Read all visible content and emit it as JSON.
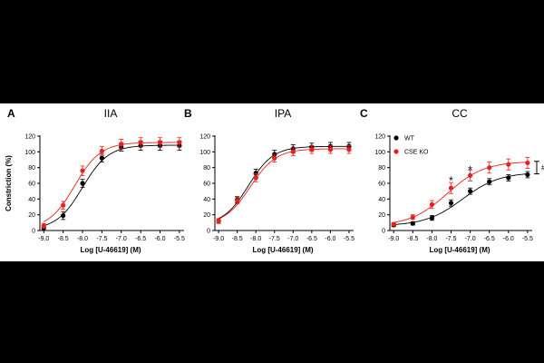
{
  "figure": {
    "x_label": "Log [U-46619] (M)",
    "y_label": "Constriction (%)",
    "x_ticks": [
      "-9.0",
      "-8.5",
      "-8.0",
      "-7.5",
      "-7.0",
      "-6.5",
      "-6.0",
      "-5.5"
    ],
    "y_ticks": [
      "0",
      "20",
      "40",
      "60",
      "80",
      "100",
      "120"
    ]
  },
  "chart_data": [
    {
      "type": "scatter",
      "panel_letter": "A",
      "title": "IIA",
      "xlabel": "Log [U-46619] (M)",
      "ylabel": "Constriction (%)",
      "xlim": [
        -9.1,
        -5.45
      ],
      "ylim": [
        0,
        120
      ],
      "x": [
        -9.0,
        -8.5,
        -8.0,
        -7.5,
        -7.0,
        -6.5,
        -6.0,
        -5.5
      ],
      "series": [
        {
          "name": "WT",
          "color": "#000000",
          "values": [
            3,
            19,
            60,
            92,
            106,
            108,
            108,
            108
          ],
          "errors": [
            3,
            5,
            5,
            5,
            5,
            6,
            6,
            6
          ],
          "fit": {
            "bottom": 1,
            "top": 108.5,
            "log_ec50": -8.0,
            "hill": 1.3
          }
        },
        {
          "name": "CSE KO",
          "color": "#e8211c",
          "values": [
            6,
            32,
            76,
            101,
            110,
            112,
            112,
            112
          ],
          "errors": [
            3,
            5,
            6,
            6,
            6,
            6,
            6,
            6
          ],
          "fit": {
            "bottom": 2,
            "top": 112,
            "log_ec50": -8.2,
            "hill": 1.3
          }
        }
      ]
    },
    {
      "type": "scatter",
      "panel_letter": "B",
      "title": "IPA",
      "xlabel": "Log [U-46619] (M)",
      "ylabel": "",
      "xlim": [
        -9.1,
        -5.45
      ],
      "ylim": [
        0,
        120
      ],
      "x": [
        -9.0,
        -8.5,
        -8.0,
        -7.5,
        -7.0,
        -6.5,
        -6.0,
        -5.5
      ],
      "series": [
        {
          "name": "WT",
          "color": "#000000",
          "values": [
            12,
            39,
            73,
            97,
            104,
            106,
            107,
            107
          ],
          "errors": [
            3,
            4,
            5,
            5,
            5,
            5,
            5,
            5
          ],
          "fit": {
            "bottom": 7,
            "top": 107,
            "log_ec50": -8.2,
            "hill": 1.3
          }
        },
        {
          "name": "CSE KO",
          "color": "#e8211c",
          "values": [
            12,
            38,
            67,
            92,
            100,
            103,
            103,
            103
          ],
          "errors": [
            3,
            4,
            5,
            5,
            5,
            5,
            5,
            5
          ],
          "fit": {
            "bottom": 7,
            "top": 104,
            "log_ec50": -8.15,
            "hill": 1.25
          }
        }
      ]
    },
    {
      "type": "scatter",
      "panel_letter": "C",
      "title": "CC",
      "xlabel": "Log [U-46619] (M)",
      "ylabel": "",
      "xlim": [
        -9.1,
        -5.45
      ],
      "ylim": [
        0,
        120
      ],
      "x": [
        -9.0,
        -8.5,
        -8.0,
        -7.5,
        -7.0,
        -6.5,
        -6.0,
        -5.5
      ],
      "legend": {
        "position": "top-left",
        "entries": [
          "WT",
          "CSE KO"
        ]
      },
      "annotations": [
        {
          "text": "*",
          "x": -7.5,
          "y": 67
        },
        {
          "text": "*",
          "x": -7.0,
          "y": 80
        },
        {
          "text": "#",
          "bracket_y": [
            72,
            88
          ]
        }
      ],
      "series": [
        {
          "name": "WT",
          "color": "#000000",
          "values": [
            7,
            9,
            16,
            35,
            50,
            62,
            67,
            71
          ],
          "errors": [
            2,
            2,
            3,
            4,
            4,
            4,
            4,
            4
          ],
          "fit": {
            "bottom": 6,
            "top": 74,
            "log_ec50": -7.2,
            "hill": 0.9
          }
        },
        {
          "name": "CSE KO",
          "color": "#e8211c",
          "values": [
            8,
            17,
            33,
            54,
            70,
            80,
            84,
            86
          ],
          "errors": [
            2,
            3,
            5,
            7,
            7,
            7,
            7,
            7
          ],
          "fit": {
            "bottom": 6,
            "top": 88,
            "log_ec50": -7.6,
            "hill": 0.9
          }
        }
      ]
    }
  ]
}
